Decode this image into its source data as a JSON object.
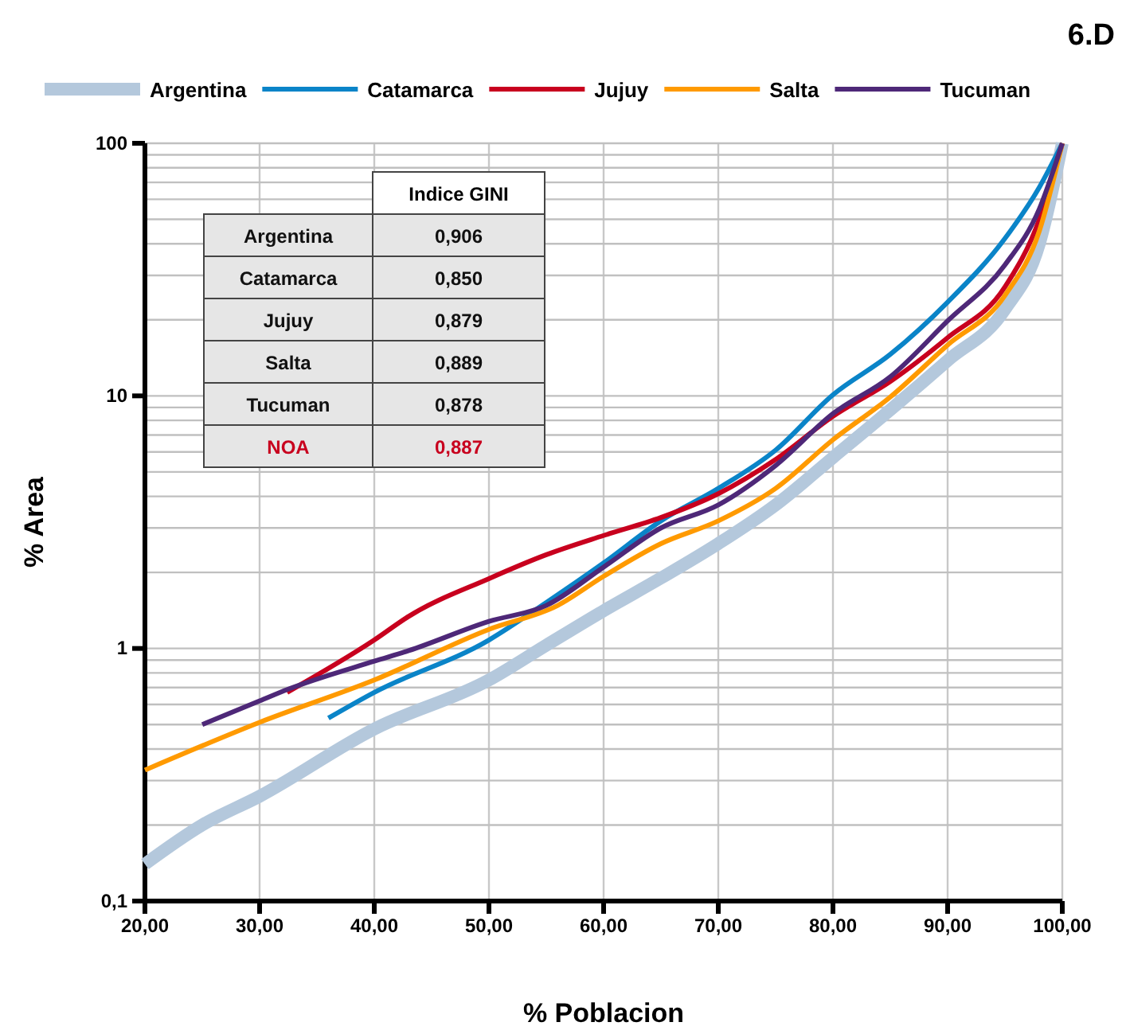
{
  "chart_data": {
    "type": "line",
    "title": "6.D",
    "xlabel": "% Poblacion",
    "ylabel": "% Area",
    "log": "y",
    "grid": true,
    "legend": "top",
    "marker": "none",
    "line_style": "solid",
    "xlim": [
      20,
      100
    ],
    "xticks": [
      {
        "value": 20,
        "label": "20,00"
      },
      {
        "value": 30,
        "label": "30,00"
      },
      {
        "value": 40,
        "label": "40,00"
      },
      {
        "value": 50,
        "label": "50,00"
      },
      {
        "value": 60,
        "label": "60,00"
      },
      {
        "value": 70,
        "label": "70,00"
      },
      {
        "value": 80,
        "label": "80,00"
      },
      {
        "value": 90,
        "label": "90,00"
      },
      {
        "value": 100,
        "label": "100,00"
      }
    ],
    "ylim": [
      0.1,
      100
    ],
    "yticks": [
      {
        "value": 0.1,
        "label": "0,1"
      },
      1,
      10,
      100
    ],
    "series": [
      {
        "name": "Argentina",
        "color": "#b4c8dc",
        "x": [
          20,
          25,
          30,
          40,
          50,
          55,
          60,
          65,
          70,
          75,
          80,
          85,
          90,
          95,
          98,
          100
        ],
        "values": [
          0.14,
          0.2,
          0.26,
          0.48,
          0.75,
          1.03,
          1.41,
          1.9,
          2.6,
          3.7,
          5.7,
          8.8,
          13.8,
          22,
          40,
          100
        ]
      },
      {
        "name": "Catamarca",
        "color": "#0a84c8",
        "x": [
          36,
          40,
          50,
          55,
          60,
          65,
          70,
          75,
          80,
          85,
          90,
          95,
          98,
          100
        ],
        "values": [
          0.53,
          0.67,
          1.08,
          1.52,
          2.18,
          3.2,
          4.3,
          6.1,
          10.1,
          14.6,
          23.5,
          42,
          67,
          100
        ]
      },
      {
        "name": "Jujuy",
        "color": "#c8001e",
        "x": [
          32.4,
          40,
          43,
          50,
          55,
          60,
          65,
          70,
          75,
          80,
          85,
          90,
          95,
          98,
          100
        ],
        "values": [
          0.67,
          1.08,
          1.34,
          1.89,
          2.35,
          2.8,
          3.3,
          4.1,
          5.6,
          8.3,
          11.4,
          17,
          27,
          50,
          100
        ]
      },
      {
        "name": "Salta",
        "color": "#ff9a00",
        "x": [
          20,
          30,
          40,
          50,
          56,
          60,
          65,
          70,
          75,
          80,
          85,
          90,
          95,
          98,
          100
        ],
        "values": [
          0.33,
          0.51,
          0.75,
          1.19,
          1.48,
          1.93,
          2.6,
          3.2,
          4.3,
          6.7,
          9.9,
          15.9,
          25,
          45,
          100
        ]
      },
      {
        "name": "Tucuman",
        "color": "#4e2878",
        "x": [
          25,
          30,
          32.5,
          40,
          43,
          50,
          55,
          60,
          65,
          70,
          75,
          80,
          85,
          90,
          95,
          98,
          100
        ],
        "values": [
          0.5,
          0.62,
          0.69,
          0.89,
          0.98,
          1.28,
          1.48,
          2.1,
          3,
          3.7,
          5.3,
          8.5,
          11.9,
          19.8,
          33,
          55,
          100
        ]
      }
    ],
    "annotations": [
      "Indice GINI",
      "Argentina",
      "0,906",
      "Catamarca",
      "0,850",
      "Jujuy",
      "0,879",
      "Salta",
      "0,889",
      "Tucuman",
      "0,878",
      "NOA",
      "0,887"
    ]
  }
}
